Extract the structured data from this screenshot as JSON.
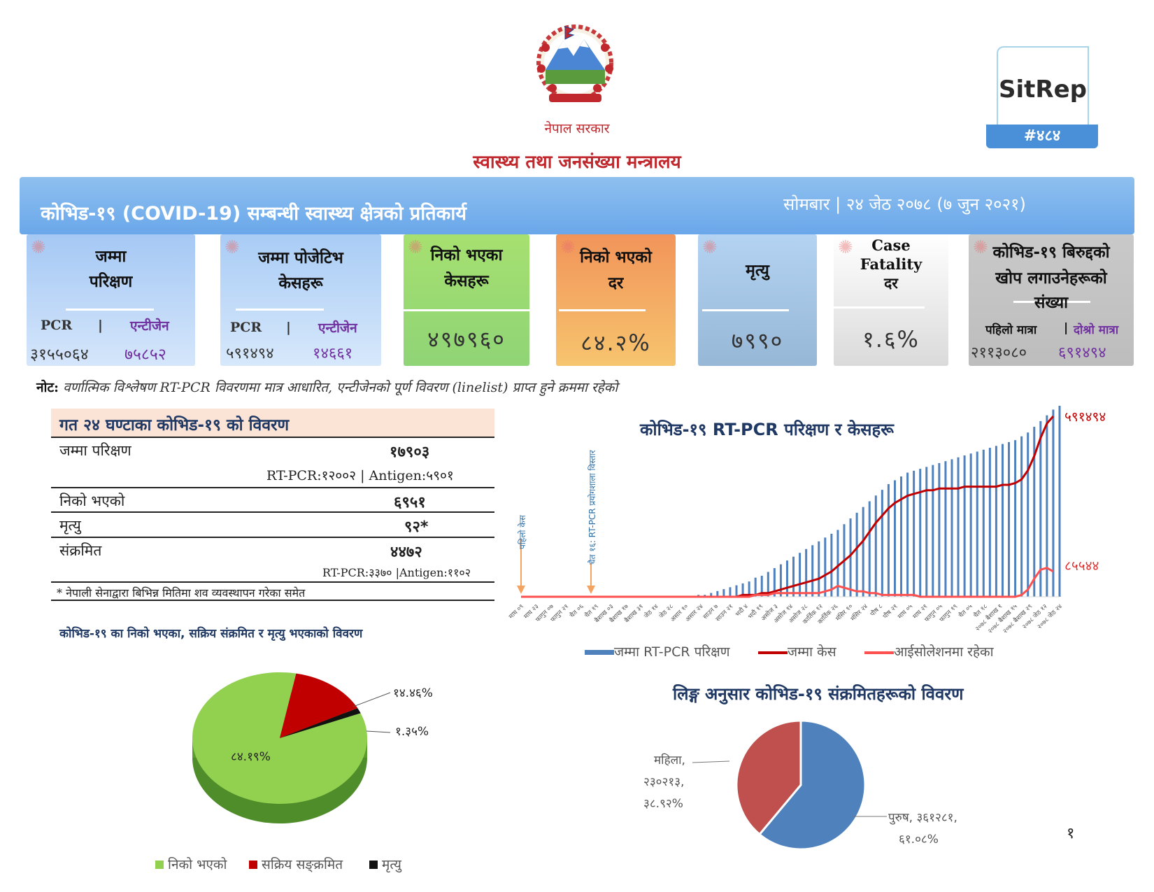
{
  "header": {
    "gov_name": "नेपाल सरकार",
    "ministry": "स्वास्थ्य तथा जनसंख्या मन्त्रालय",
    "emblem_text": "नेपाल सरकार",
    "sitrep_label": "SitRep",
    "sitrep_number": "#४८४"
  },
  "banner": {
    "title": "कोभिड-१९ (COVID-19) सम्बन्धी स्वास्थ्य क्षेत्रको प्रतिकार्य",
    "date": "सोमबार | २४ जेठ २०७८ (७ जुन २०२१)"
  },
  "cards": {
    "tests": {
      "title_1": "जम्मा",
      "title_2": "परिक्षण",
      "pcr_label": "PCR",
      "sep": "|",
      "antigen_label": "एन्टीजेन",
      "pcr_value": "३१५५०६४",
      "antigen_value": "७५८५२"
    },
    "positive": {
      "title_1": "जम्मा पोजेटिभ",
      "title_2": "केसहरू",
      "pcr_label": "PCR",
      "sep": "|",
      "antigen_label": "एन्टीजेन",
      "pcr_value": "५९१४९४",
      "antigen_value": "१४६६१"
    },
    "recovered": {
      "title_1": "निको भएका",
      "title_2": "केसहरू",
      "value": "४९७९६० "
    },
    "recovery_rate": {
      "title_1": "निको भएको",
      "title_2": "दर",
      "value": "८४.२%"
    },
    "deaths": {
      "title": "मृत्यु",
      "value": "७९९०"
    },
    "cfr": {
      "title_1": "Case",
      "title_2": "Fatality",
      "title_3": "दर",
      "value": "१.६%"
    },
    "vaccine": {
      "title_1": "कोभिड-१९ बिरुद्दको",
      "title_2": "खोप लगाउनेहरूको",
      "title_3": "संख्या",
      "dose1_label": "पहिलो मात्रा",
      "sep": "|",
      "dose2_label": "दोश्रो मात्रा",
      "dose1_value": "२११३०८०",
      "dose2_value": "६९१४९४"
    }
  },
  "note": {
    "label": "नोट:",
    "text": "वर्णात्मिक विश्लेषण RT-PCR विवरणमा मात्र आधारित, एन्टीजेनको पूर्ण विवरण (linelist) प्राप्त हुने क्रममा रहेको"
  },
  "table_24h": {
    "title": "गत २४ घण्टाका कोभिड-१९ को विवरण",
    "rows": [
      {
        "label": "जम्मा परिक्षण",
        "value": "१७९०३",
        "sub": "RT-PCR:१२००२ | Antigen:५९०१"
      },
      {
        "label": "निको भएको",
        "value": "६९५१"
      },
      {
        "label": "मृत्यु",
        "value": "९२*"
      },
      {
        "label": "संक्रमित",
        "value": "४४७२",
        "sub": "RT-PCR:३३७० |Antigen:११०२"
      }
    ],
    "footnote": "* नेपाली सेनाद्वारा बिभिन्न मितिमा शव व्यवस्थापन गरेका समेत"
  },
  "recovery_pie": {
    "title": "कोभिड-१९ का निको भएका, सक्रिय संक्रमित र मृत्यु भएकाको विवरण",
    "legend": [
      "निको भएको",
      "सक्रिय सङ्क्रमित",
      "मृत्यु"
    ],
    "labels": [
      "८४.१९%",
      "१४.४६%",
      "१.३५%"
    ],
    "colors": [
      "#92d050",
      "#c00000",
      "#111111"
    ]
  },
  "gender_pie": {
    "title": "लिङ्ग अनुसार कोभिड-१९ संक्रमितहरूको विवरण",
    "female_label_1": "महिला,",
    "female_label_2": "२३०२१३,",
    "female_label_3": "३८.९२%",
    "male_label_1": "पुरुष, ३६१२८१,",
    "male_label_2": "६१.०८%",
    "colors": [
      "#4f81bd",
      "#c0504d"
    ]
  },
  "chart_data": {
    "type": "bar",
    "title": "कोभिड-१९ RT-PCR परिक्षण र केसहरू",
    "series": [
      {
        "name": "जम्मा RT-PCR परिक्षण",
        "kind": "bar",
        "color": "#4f81bd"
      },
      {
        "name": "जम्मा केस",
        "kind": "line",
        "color": "#c00000"
      },
      {
        "name": "आईसोलेशनमा रहेका",
        "kind": "line",
        "color": "#ff5050"
      }
    ],
    "x": [
      "माघ ०९",
      "माघ २३",
      "फागुन ०७",
      "फागुन २१",
      "चैत ०६",
      "चैत १९",
      "बैशाख ०३",
      "बैशाख १७",
      "बैशाख ३१",
      "जेठ १४",
      "जेठ २८",
      "असार १०",
      "असार २४",
      "साउन ७",
      "साउन २१",
      "भदौ ४",
      "भदौ १९",
      "असोज ३",
      "असोज १४",
      "असोज २८",
      "कार्तिक १२",
      "कार्तिक २६",
      "मंसिर १०",
      "मंसिर २४",
      "पौष ८",
      "पौष २१",
      "माघ ०५",
      "माघ २१",
      "फागुन ०५",
      "फागुन १९",
      "चैत ०५",
      "चैत १८",
      "२०७८ बैशाख १",
      "२०७८ बैशाख १५",
      "२०७८ बैशाख २९",
      "२०७८ जेठ १२",
      "२०७८ जेठ २४"
    ],
    "annotations": [
      "पहिलो केस",
      "चैत १६: RT-PCR प्रयोगशाला विस्तार"
    ],
    "end_labels": {
      "total_cases": "५९१४९४",
      "isolation": "८५५४४"
    },
    "approx_bars": [
      0,
      0,
      0,
      0,
      0,
      0,
      0,
      0,
      0,
      0,
      0,
      0,
      0,
      0,
      0,
      0,
      0,
      0,
      0,
      0,
      0,
      0,
      0,
      0,
      0,
      0,
      0,
      0,
      1,
      1,
      2,
      3,
      4,
      5,
      6,
      7,
      8,
      10,
      11,
      13,
      15,
      17,
      19,
      21,
      23,
      25,
      27,
      29,
      31,
      33,
      35,
      38,
      41,
      44,
      47,
      50,
      53,
      56,
      59,
      61,
      63,
      65,
      66,
      67,
      68,
      69,
      70,
      71,
      72,
      73,
      74,
      75,
      76,
      77,
      78,
      79,
      80,
      81,
      82,
      84,
      86,
      89,
      92,
      95,
      98,
      100
    ],
    "approx_cases": [
      0,
      0,
      0,
      0,
      0,
      0,
      0,
      0,
      0,
      0,
      0,
      0,
      0,
      0,
      0,
      0,
      0,
      0,
      0,
      0,
      0,
      0,
      0,
      0,
      0,
      0,
      0,
      0,
      0,
      0,
      0,
      0,
      0,
      0,
      0,
      1,
      1,
      1,
      2,
      2,
      3,
      4,
      5,
      6,
      7,
      8,
      9,
      10,
      12,
      14,
      17,
      20,
      23,
      27,
      31,
      36,
      41,
      45,
      49,
      52,
      54,
      56,
      57,
      58,
      59,
      59,
      60,
      60,
      60,
      60,
      61,
      61,
      61,
      61,
      61,
      61,
      62,
      62,
      63,
      65,
      70,
      78,
      88,
      96,
      100
    ],
    "approx_isolation": [
      0,
      0,
      0,
      0,
      0,
      0,
      0,
      0,
      0,
      0,
      0,
      0,
      0,
      0,
      0,
      0,
      0,
      0,
      0,
      0,
      0,
      0,
      0,
      0,
      0,
      0,
      0,
      0,
      0,
      0,
      0,
      0,
      0,
      0,
      0,
      0,
      0,
      1,
      1,
      1,
      2,
      2,
      2,
      2,
      2,
      2,
      2,
      2,
      3,
      4,
      6,
      5,
      4,
      3,
      3,
      2,
      2,
      1,
      1,
      1,
      1,
      1,
      1,
      0,
      0,
      0,
      0,
      0,
      0,
      0,
      0,
      0,
      0,
      0,
      0,
      0,
      0,
      0,
      0,
      1,
      4,
      10,
      15,
      16,
      14
    ]
  }
}
